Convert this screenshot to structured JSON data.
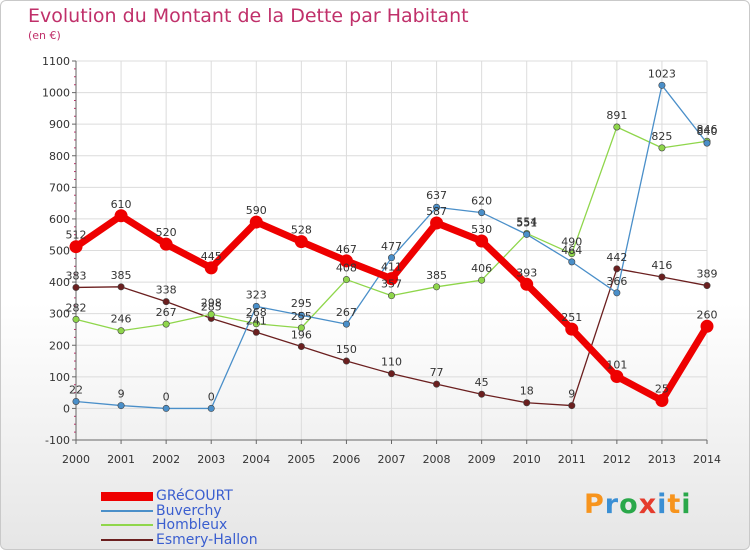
{
  "header": {
    "title": "Evolution du Montant de la Dette par Habitant",
    "unit": "(en €)"
  },
  "logo": {
    "text": "Proxiti",
    "colors": [
      "#f7941d",
      "#3a8fd4",
      "#2aa84a",
      "#e53b2c",
      "#3a8fd4",
      "#f7941d",
      "#2aa84a"
    ]
  },
  "chart_data": {
    "type": "line",
    "x": [
      "2000",
      "2001",
      "2002",
      "2003",
      "2004",
      "2005",
      "2006",
      "2007",
      "2008",
      "2009",
      "2010",
      "2011",
      "2012",
      "2013",
      "2014"
    ],
    "ylim": [
      -100,
      1100
    ],
    "yticks": [
      -100,
      0,
      100,
      200,
      300,
      400,
      500,
      600,
      700,
      800,
      900,
      1000,
      1100
    ],
    "grid": true,
    "legend_position": "bottom-left",
    "series": [
      {
        "name": "Esmery-Hallon",
        "color": "#6b1f1f",
        "values": [
          383,
          385,
          338,
          285,
          241,
          196,
          150,
          110,
          77,
          45,
          18,
          9,
          442,
          416,
          389
        ]
      },
      {
        "name": "Hombleux",
        "color": "#8fd64b",
        "values": [
          282,
          246,
          267,
          298,
          268,
          255,
          408,
          357,
          385,
          406,
          554,
          490,
          891,
          825,
          846
        ]
      },
      {
        "name": "Buverchy",
        "color": "#4a8fc9",
        "values": [
          22,
          9,
          0,
          0,
          323,
          295,
          267,
          477,
          637,
          620,
          551,
          464,
          366,
          1023,
          840
        ]
      },
      {
        "name": "GRéCOURT",
        "color": "#ee0000",
        "values": [
          512,
          610,
          520,
          445,
          590,
          528,
          467,
          411,
          587,
          530,
          393,
          251,
          101,
          25,
          260
        ]
      }
    ]
  }
}
